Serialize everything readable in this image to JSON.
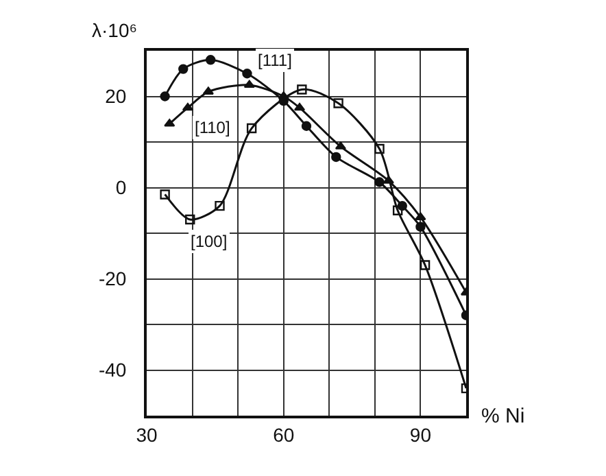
{
  "chart_data": {
    "type": "line",
    "xlabel": "% Ni",
    "ylabel": "λ·10⁶",
    "xlim": [
      30,
      100
    ],
    "ylim": [
      -50,
      30
    ],
    "xticks": [
      30,
      {
        "value": 40,
        "label": null
      },
      {
        "value": 50,
        "label": null
      },
      60,
      {
        "value": 70,
        "label": null
      },
      {
        "value": 80,
        "label": null
      },
      90,
      {
        "value": 100,
        "label": null
      }
    ],
    "yticks": [
      {
        "value": -50,
        "label": null
      },
      -40,
      {
        "value": -30,
        "label": null
      },
      -20,
      {
        "value": -10,
        "label": null
      },
      0,
      {
        "value": 10,
        "label": null
      },
      20,
      {
        "value": 30,
        "label": null
      }
    ],
    "grid": true,
    "legend": false,
    "series": [
      {
        "name": "[111]",
        "color": "#111111",
        "marker": "circle",
        "x": [
          34,
          38,
          44,
          52,
          60,
          65,
          71.5,
          81,
          86,
          90,
          100
        ],
        "values": [
          20,
          26,
          28,
          25,
          19,
          13.5,
          6.7,
          1.2,
          -4,
          -8.6,
          -28
        ]
      },
      {
        "name": "[110]",
        "color": "#111111",
        "marker": "triangle",
        "x": [
          35,
          39,
          43.5,
          52.5,
          60,
          63.5,
          72.5,
          83,
          90,
          100
        ],
        "values": [
          14,
          17.5,
          21,
          22.5,
          20,
          17.5,
          9,
          1.5,
          -6.5,
          -23
        ]
      },
      {
        "name": "[100]",
        "color": "#111111",
        "marker": "square",
        "x": [
          34,
          39.5,
          46,
          53,
          64,
          72,
          81,
          85,
          91,
          100
        ],
        "values": [
          -1.5,
          -7,
          -4,
          13,
          21.5,
          18.5,
          8.5,
          -5,
          -17,
          -44
        ]
      }
    ]
  }
}
